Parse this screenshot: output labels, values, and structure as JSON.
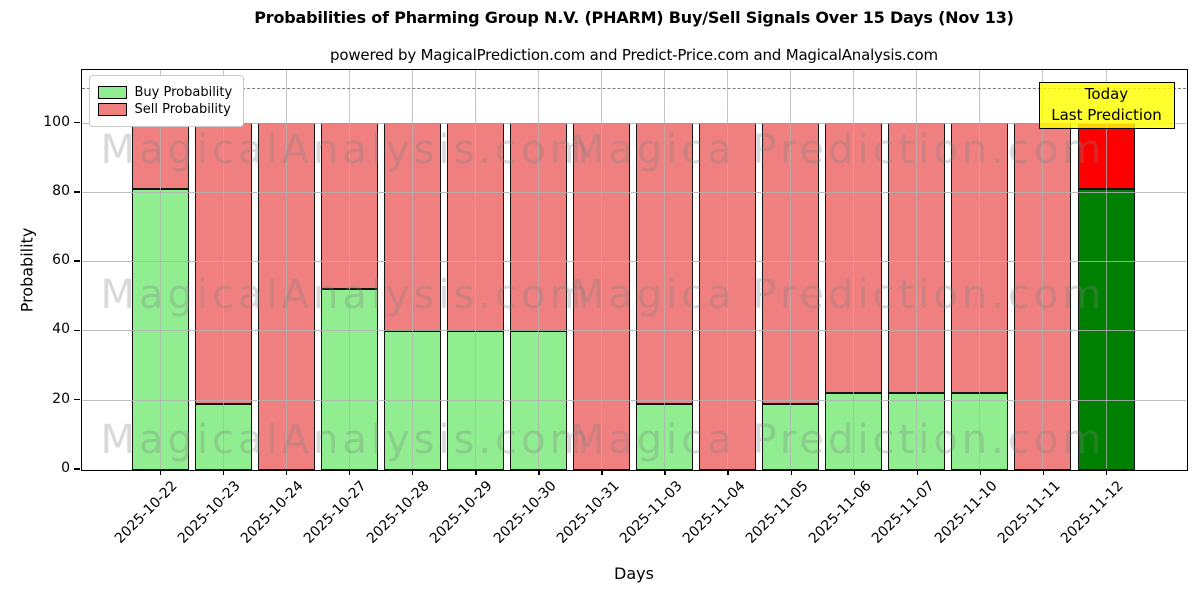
{
  "chart_data": {
    "type": "bar",
    "stacked": true,
    "title": "Probabilities of Pharming Group N.V. (PHARM) Buy/Sell Signals Over 15 Days (Nov 13)",
    "subtitle": "powered by MagicalPrediction.com and Predict-Price.com and MagicalAnalysis.com",
    "xlabel": "Days",
    "ylabel": "Probability",
    "categories": [
      "2025-10-22",
      "2025-10-23",
      "2025-10-24",
      "2025-10-27",
      "2025-10-28",
      "2025-10-29",
      "2025-10-30",
      "2025-10-31",
      "2025-11-03",
      "2025-11-04",
      "2025-11-05",
      "2025-11-06",
      "2025-11-07",
      "2025-11-10",
      "2025-11-11",
      "2025-11-12"
    ],
    "series": [
      {
        "name": "Buy Probability",
        "values": [
          81,
          19,
          0,
          52,
          40,
          40,
          40,
          0,
          19,
          0,
          19,
          22,
          22,
          22,
          0,
          81
        ],
        "color": "#90EE90",
        "today_color": "#008000"
      },
      {
        "name": "Sell Probability",
        "values": [
          19,
          81,
          100,
          48,
          60,
          60,
          60,
          100,
          81,
          100,
          81,
          78,
          78,
          78,
          100,
          19
        ],
        "color": "#F08080",
        "today_color": "#FF0000"
      }
    ],
    "yticks": [
      0,
      20,
      40,
      60,
      80,
      100
    ],
    "ylim": [
      0,
      115.2
    ],
    "dashed_line_y": 110,
    "grid": true,
    "legend": {
      "position": "top-left",
      "entries": [
        {
          "label": "Buy Probability",
          "color": "#90EE90"
        },
        {
          "label": "Sell Probability",
          "color": "#F08080"
        }
      ]
    },
    "annotation": {
      "lines": [
        "Today",
        "Last Prediction"
      ],
      "bg_color": "#FFFF00",
      "border_color": "#000000"
    },
    "watermarks": [
      "MagicalAnalysis.com",
      "Magica Prediction.com"
    ]
  }
}
